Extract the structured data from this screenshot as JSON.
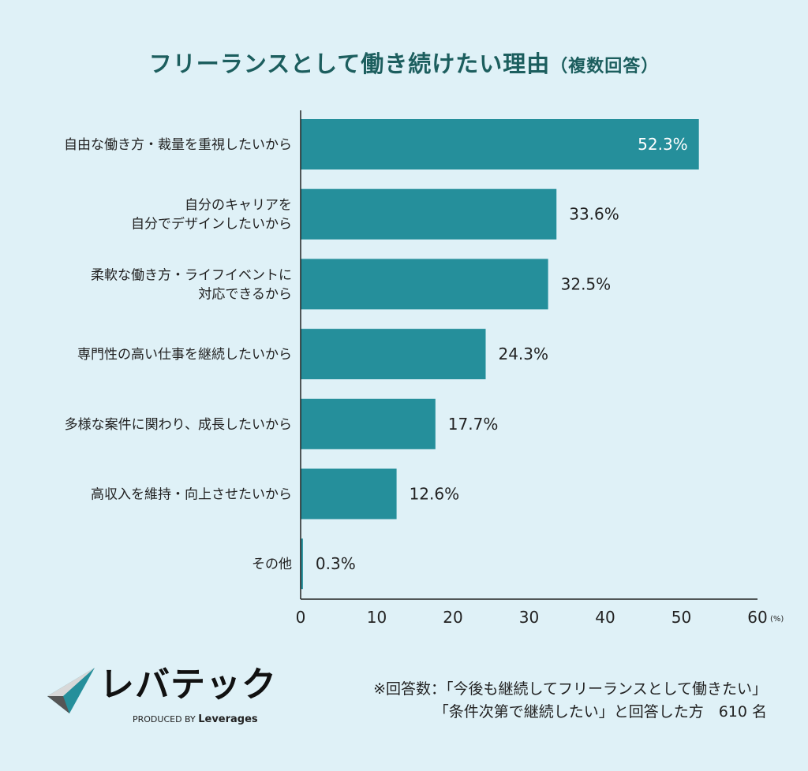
{
  "chart_data": {
    "type": "bar",
    "orientation": "horizontal",
    "title": "フリーランスとして働き続けたい理由",
    "subtitle": "（複数回答）",
    "categories": [
      "自由な働き方・裁量を重視したいから",
      "自分のキャリアを\n自分でデザインしたいから",
      "柔軟な働き方・ライフイベントに\n対応できるから",
      "専門性の高い仕事を継続したいから",
      "多様な案件に関わり、成長したいから",
      "高収入を維持・向上させたいから",
      "その他"
    ],
    "values": [
      52.3,
      33.6,
      32.5,
      24.3,
      17.7,
      12.6,
      0.3
    ],
    "value_labels": [
      "52.3%",
      "33.6%",
      "32.5%",
      "24.3%",
      "17.7%",
      "12.6%",
      "0.3%"
    ],
    "xlim": [
      0,
      60
    ],
    "xticks": [
      "0",
      "10",
      "20",
      "30",
      "40",
      "50",
      "60"
    ],
    "xunit": "(%)",
    "grid": false,
    "colors": {
      "bar": "#258f9b",
      "title": "#1c5e5e",
      "background": "#dff1f7"
    }
  },
  "logo": {
    "name": "レバテック",
    "produced_by": "PRODUCED BY",
    "brand": "Leverages"
  },
  "footnote": {
    "line1": "※回答数：「今後も継続してフリーランスとして働きたい」",
    "line2": "「条件次第で継続したい」と回答した方　610 名"
  }
}
